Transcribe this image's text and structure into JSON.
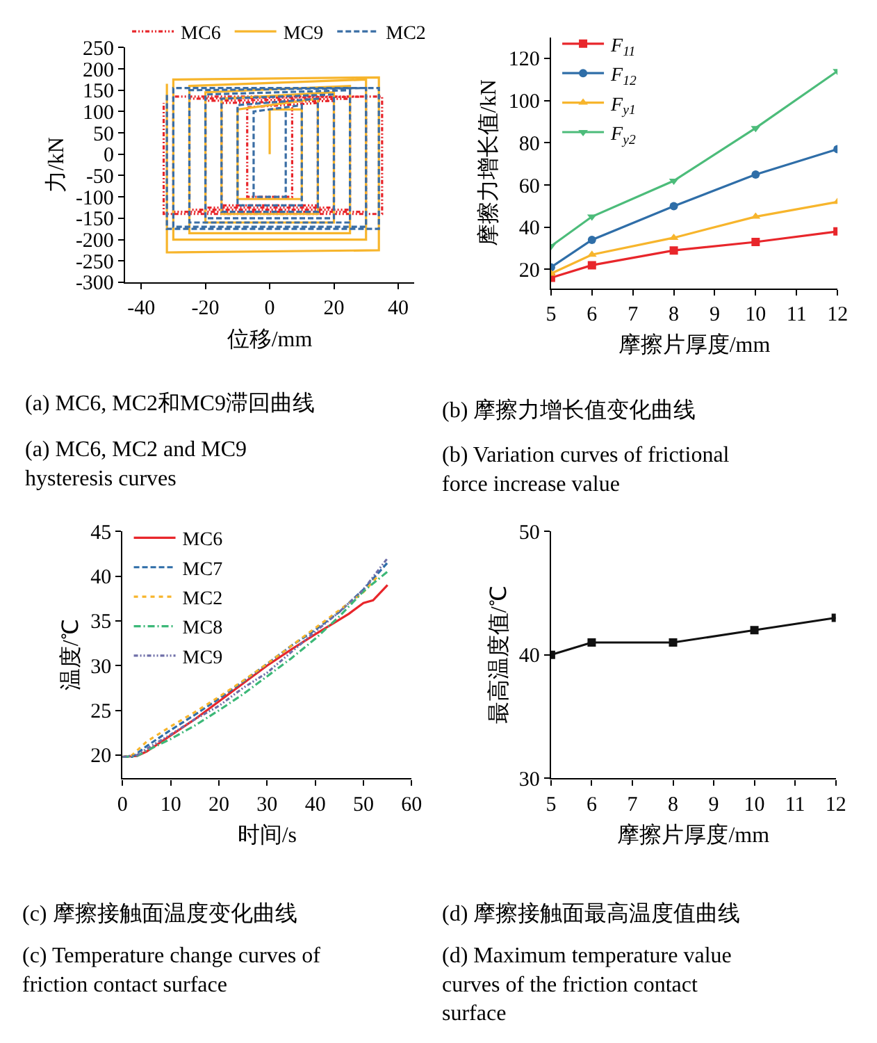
{
  "chart_data": [
    {
      "type": "line",
      "xlabel": "位移/mm",
      "ylabel": "力/kN",
      "xlim": [
        -45,
        45
      ],
      "xticks": [
        -40,
        -20,
        0,
        20,
        40
      ],
      "ylim": [
        -300,
        250
      ],
      "yticks": [
        -300,
        -250,
        -200,
        -150,
        -100,
        -50,
        0,
        50,
        100,
        150,
        200,
        250
      ],
      "legend": "top",
      "marker": "none",
      "annotations": [
        "(a) MC6, MC2和MC9滞回曲线",
        "(a) MC6, MC2 and MC9\nhysteresis curves"
      ],
      "series": [
        {
          "name": "MC6",
          "color": "#e8262b",
          "line_style": "dashdotdot",
          "x": [
            7,
            7,
            -7,
            -7,
            15,
            15,
            -15,
            -15,
            20,
            20,
            -20,
            -20,
            25,
            25,
            -25,
            -25,
            30,
            30,
            -30,
            -30,
            35,
            35,
            -33,
            -33
          ],
          "values": [
            110,
            -100,
            -100,
            110,
            120,
            -120,
            -120,
            120,
            125,
            -125,
            -125,
            125,
            130,
            -130,
            -130,
            130,
            135,
            -135,
            -135,
            135,
            135,
            -140,
            -140,
            120
          ]
        },
        {
          "name": "MC9",
          "color": "#f7b52c",
          "line_style": "solid",
          "x": [
            0,
            0,
            10,
            10,
            -10,
            -10,
            15,
            15,
            -15,
            -15,
            20,
            20,
            -20,
            -20,
            25,
            25,
            -25,
            -25,
            30,
            30,
            -30,
            -30,
            34,
            34,
            -32,
            -32
          ],
          "values": [
            0,
            105,
            105,
            -105,
            -105,
            105,
            130,
            -140,
            -140,
            130,
            145,
            -160,
            -160,
            145,
            160,
            -185,
            -185,
            160,
            175,
            -200,
            -200,
            175,
            180,
            -225,
            -230,
            165
          ]
        },
        {
          "name": "MC2",
          "color": "#3a6ea5",
          "line_style": "dashed",
          "x": [
            5,
            5,
            -5,
            -5,
            10,
            10,
            -10,
            -10,
            15,
            15,
            -15,
            -15,
            20,
            20,
            -20,
            -20,
            25,
            25,
            -25,
            -25,
            30,
            30,
            -30,
            -30,
            34,
            34,
            -32,
            -32
          ],
          "values": [
            100,
            -100,
            -100,
            100,
            115,
            -120,
            -120,
            115,
            130,
            -135,
            -135,
            130,
            140,
            -150,
            -150,
            140,
            150,
            -160,
            -160,
            150,
            155,
            -170,
            -170,
            155,
            155,
            -175,
            -175,
            140
          ]
        }
      ]
    },
    {
      "type": "line",
      "xlabel": "摩擦片厚度/mm",
      "ylabel": "摩擦力增长值/kN",
      "x": [
        5,
        6,
        8,
        10,
        12
      ],
      "xlim": [
        5,
        12
      ],
      "xticks": [
        5,
        6,
        7,
        8,
        9,
        10,
        11,
        12
      ],
      "ylim": [
        11,
        130
      ],
      "yticks": [
        20,
        40,
        60,
        80,
        100,
        120
      ],
      "legend": "top left",
      "annotations": [
        "(b) 摩擦力增长值变化曲线",
        "(b) Variation curves of frictional\nforce increase value"
      ],
      "series": [
        {
          "name": "F$_{11}$",
          "color": "#e8262b",
          "marker": "square",
          "values": [
            16,
            22,
            29,
            33,
            38
          ]
        },
        {
          "name": "F$_{12}$",
          "color": "#2f6ea8",
          "marker": "circle",
          "values": [
            21,
            34,
            50,
            65,
            77
          ]
        },
        {
          "name": "F$_{y1}$",
          "color": "#f7b52c",
          "marker": "triangle",
          "values": [
            18,
            27,
            35,
            45,
            52
          ]
        },
        {
          "name": "F$_{y2}$",
          "color": "#4cbc7a",
          "marker": "triangle-down",
          "values": [
            31,
            45,
            62,
            87,
            114
          ]
        }
      ]
    },
    {
      "type": "line",
      "xlabel": "时间/s",
      "ylabel": "温度/℃",
      "xlim": [
        0,
        60
      ],
      "xticks": [
        0,
        10,
        20,
        30,
        40,
        50,
        60
      ],
      "ylim": [
        17.4,
        45
      ],
      "yticks": [
        20,
        25,
        30,
        35,
        40,
        45
      ],
      "legend": "top left",
      "marker": "none",
      "annotations": [
        "(c) 摩擦接触面温度变化曲线",
        "(c) Temperature change curves of\nfriction contact surface"
      ],
      "series": [
        {
          "name": "MC6",
          "color": "#e8262b",
          "line_style": "solid",
          "x": [
            0,
            3,
            5,
            10,
            15,
            20,
            25,
            30,
            35,
            40,
            44,
            47,
            50,
            52,
            55
          ],
          "values": [
            19.8,
            19.9,
            20.4,
            22.2,
            24.0,
            26.0,
            28.0,
            30.0,
            31.8,
            33.5,
            34.8,
            35.8,
            37.0,
            37.3,
            39.0
          ]
        },
        {
          "name": "MC7",
          "color": "#2f6ea8",
          "line_style": "dashed",
          "x": [
            0,
            2,
            5,
            10,
            15,
            20,
            25,
            30,
            35,
            40,
            45,
            50,
            55
          ],
          "values": [
            19.8,
            19.8,
            21.0,
            22.8,
            24.5,
            26.3,
            28.2,
            30.2,
            32.2,
            34.0,
            36.0,
            38.5,
            41.5
          ]
        },
        {
          "name": "MC2",
          "color": "#f7b52c",
          "line_style": "dotted",
          "x": [
            0,
            2,
            5,
            10,
            15,
            20,
            25,
            30,
            35,
            40,
            45,
            50,
            53
          ],
          "values": [
            19.8,
            20.0,
            21.5,
            23.2,
            24.8,
            26.5,
            28.3,
            30.2,
            32.2,
            34.2,
            36.2,
            38.2,
            40.0
          ]
        },
        {
          "name": "MC8",
          "color": "#3cb878",
          "line_style": "dashdot",
          "x": [
            0,
            3,
            5,
            10,
            15,
            20,
            25,
            30,
            35,
            40,
            45,
            50,
            55
          ],
          "values": [
            19.8,
            19.9,
            20.5,
            21.8,
            23.3,
            25.0,
            26.8,
            28.8,
            30.8,
            33.0,
            35.5,
            38.3,
            40.5
          ]
        },
        {
          "name": "MC9",
          "color": "#6e6ea8",
          "line_style": "dashdotdot",
          "x": [
            0,
            3,
            5,
            10,
            15,
            20,
            25,
            30,
            35,
            40,
            45,
            50,
            55
          ],
          "values": [
            19.8,
            20.0,
            20.7,
            22.3,
            24.0,
            25.5,
            27.5,
            29.2,
            31.5,
            33.8,
            36.0,
            38.5,
            42.0
          ]
        }
      ]
    },
    {
      "type": "line",
      "xlabel": "摩擦片厚度/mm",
      "ylabel": "最高温度值/℃",
      "x": [
        5,
        6,
        8,
        10,
        12
      ],
      "xlim": [
        5,
        12
      ],
      "xticks": [
        5,
        6,
        7,
        8,
        9,
        10,
        11,
        12
      ],
      "ylim": [
        30,
        50
      ],
      "yticks": [
        30,
        40,
        50
      ],
      "legend": false,
      "marker": "square",
      "annotations": [
        "(d) 摩擦接触面最高温度值曲线",
        "(d) Maximum temperature value\ncurves of the friction contact\nsurface"
      ],
      "series": [
        {
          "color": "#111111",
          "values": [
            40,
            41,
            41,
            42,
            43
          ]
        }
      ]
    }
  ]
}
